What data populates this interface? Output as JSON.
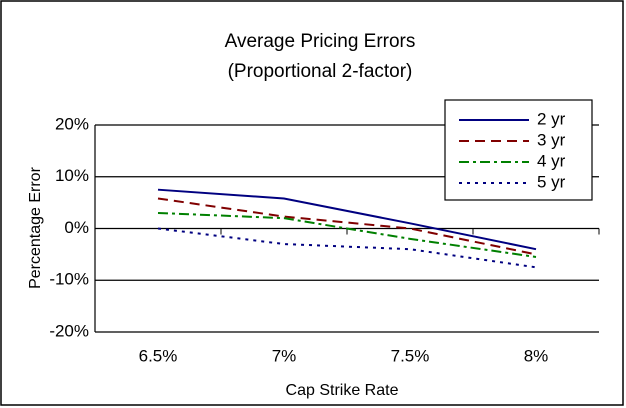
{
  "chart_data": {
    "type": "line",
    "title": "Average Pricing Errors",
    "subtitle": "(Proportional 2-factor)",
    "x_label": "Cap Strike Rate",
    "y_label": "Percentage Error",
    "categories": [
      "6.5%",
      "7%",
      "7.5%",
      "8%"
    ],
    "series": [
      {
        "name": "2 yr",
        "color": "#000080",
        "style": "solid",
        "values": [
          7.5,
          5.8,
          1.0,
          -4
        ]
      },
      {
        "name": "3 yr",
        "color": "#800000",
        "style": "dashed",
        "values": [
          5.8,
          2.3,
          0,
          -5
        ]
      },
      {
        "name": "4 yr",
        "color": "#008000",
        "style": "dashdot",
        "values": [
          3,
          2,
          -2,
          -5.5
        ]
      },
      {
        "name": "5 yr",
        "color": "#000080",
        "style": "dotted",
        "values": [
          0,
          -3,
          -4,
          -7.5
        ]
      }
    ],
    "ylim": [
      -20,
      20
    ],
    "yticks": [
      {
        "value": -20,
        "label": "-20%"
      },
      {
        "value": -10,
        "label": "-10%"
      },
      {
        "value": 0,
        "label": "0%"
      },
      {
        "value": 10,
        "label": "10%"
      },
      {
        "value": 20,
        "label": "20%"
      }
    ],
    "grid": true,
    "legend": "upper right"
  }
}
